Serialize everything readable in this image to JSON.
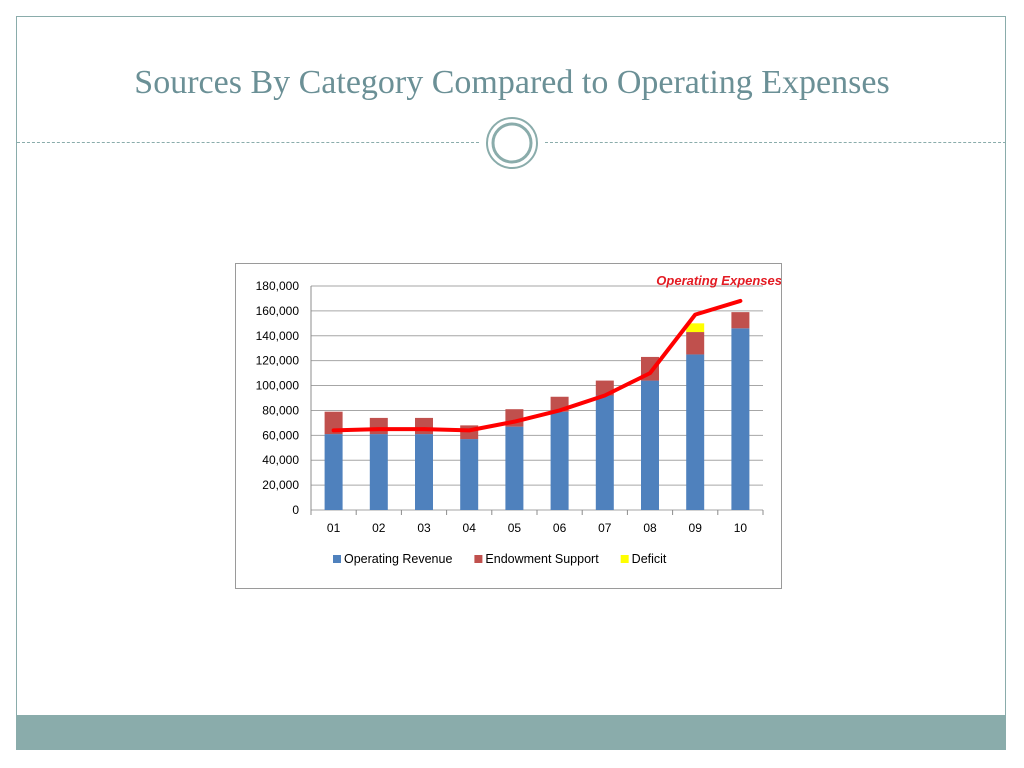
{
  "slide": {
    "title": "Sources By Category Compared to Operating Expenses"
  },
  "colors": {
    "accent": "#6b9096",
    "footer": "#8aacab",
    "operating_revenue": "#4f81bd",
    "endowment_support": "#c0504d",
    "deficit": "#ffff00",
    "operating_expenses": "#ff0000"
  },
  "icons": {
    "ornament": "double-circle-ornament-icon"
  },
  "chart_data": {
    "type": "bar",
    "stacked": true,
    "title": "",
    "xlabel": "",
    "ylabel": "",
    "ylim": [
      0,
      180000
    ],
    "yticks": [
      0,
      20000,
      40000,
      60000,
      80000,
      100000,
      120000,
      140000,
      160000,
      180000
    ],
    "ytick_labels": [
      "0",
      "20,000",
      "40,000",
      "60,000",
      "80,000",
      "100,000",
      "120,000",
      "140,000",
      "160,000",
      "180,000"
    ],
    "grid": true,
    "legend_position": "bottom",
    "categories": [
      "01",
      "02",
      "03",
      "04",
      "05",
      "06",
      "07",
      "08",
      "09",
      "10"
    ],
    "series": [
      {
        "name": "Operating Revenue",
        "color": "#4f81bd",
        "values": [
          61000,
          61000,
          61000,
          57000,
          67000,
          79000,
          92000,
          104000,
          125000,
          146000
        ]
      },
      {
        "name": "Endowment Support",
        "color": "#c0504d",
        "values": [
          18000,
          13000,
          13000,
          11000,
          14000,
          12000,
          12000,
          19000,
          18000,
          13000
        ]
      },
      {
        "name": "Deficit",
        "color": "#ffff00",
        "values": [
          0,
          0,
          0,
          0,
          0,
          0,
          0,
          0,
          7000,
          0
        ]
      }
    ],
    "line_series": {
      "name": "Operating Expenses",
      "color": "#ff0000",
      "values": [
        64000,
        65000,
        65000,
        64000,
        71000,
        80000,
        92000,
        110000,
        157000,
        168000
      ]
    },
    "annotation": "Operating Expenses"
  }
}
